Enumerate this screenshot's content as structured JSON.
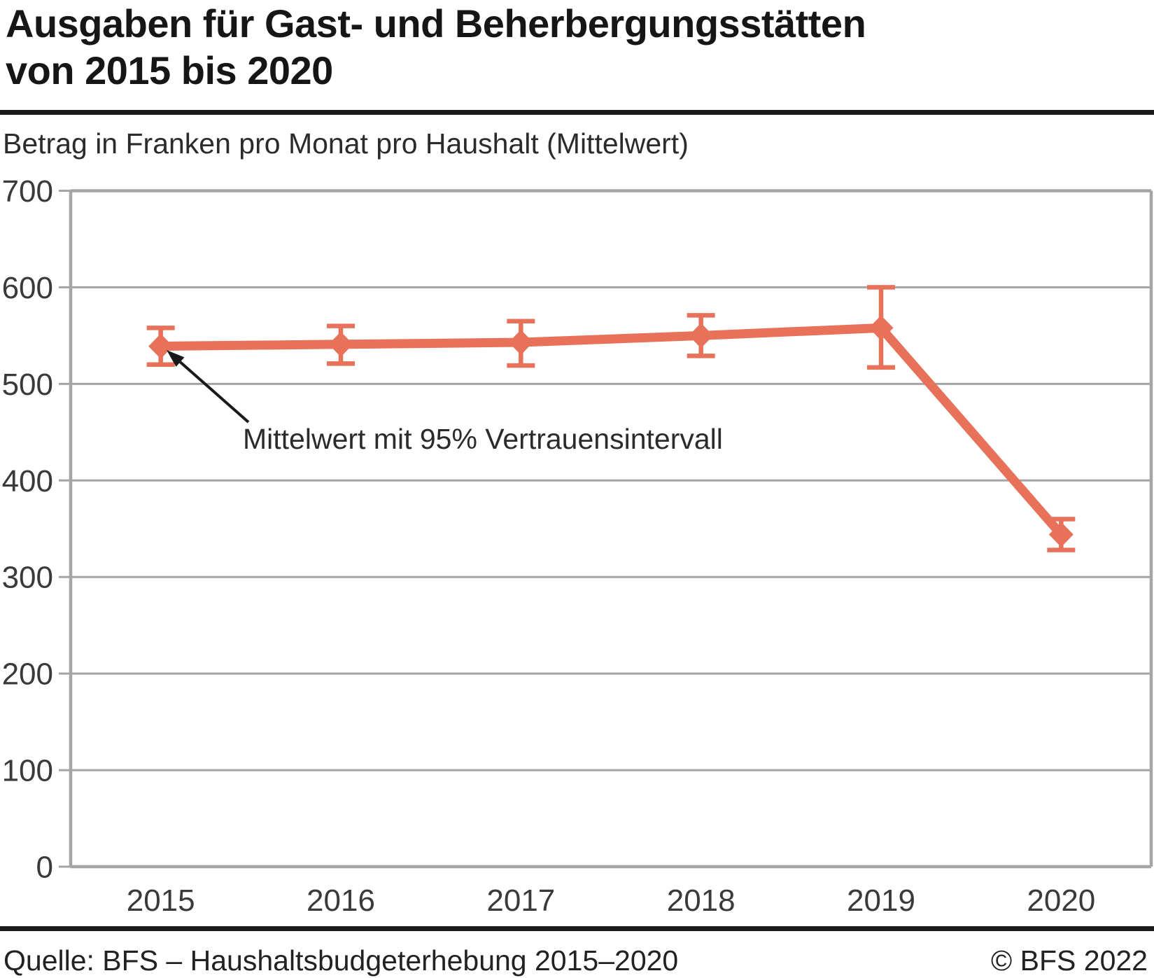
{
  "header": {
    "title_line1": "Ausgaben für Gast- und Beherbergungsstätten",
    "title_line2": "von 2015 bis 2020",
    "subtitle": "Betrag in Franken pro Monat pro Haushalt (Mittelwert)"
  },
  "annotation": {
    "label": "Mittelwert mit 95% Vertrauensintervall"
  },
  "footer": {
    "source": "Quelle: BFS – Haushaltsbudgeterhebung 2015–2020",
    "copyright": "© BFS 2022"
  },
  "chart_data": {
    "type": "line",
    "title": "Ausgaben für Gast- und Beherbergungsstätten von 2015 bis 2020",
    "ylabel": "Betrag in Franken pro Monat pro Haushalt (Mittelwert)",
    "xlabel": "",
    "categories": [
      "2015",
      "2016",
      "2017",
      "2018",
      "2019",
      "2020"
    ],
    "series": [
      {
        "name": "Mittelwert mit 95% Vertrauensintervall",
        "values": [
          539,
          541,
          543,
          550,
          558,
          344
        ],
        "ci_low": [
          520,
          521,
          519,
          529,
          517,
          328
        ],
        "ci_high": [
          558,
          560,
          565,
          571,
          600,
          360
        ]
      }
    ],
    "ylim": [
      0,
      700
    ],
    "yticks": [
      0,
      100,
      200,
      300,
      400,
      500,
      600,
      700
    ],
    "grid": true,
    "legend_position": "none",
    "colors": {
      "series": "#e8715a",
      "grid": "#a5a5a5",
      "axis_text": "#3a3a3a",
      "arrow": "#1a1a1a"
    }
  }
}
